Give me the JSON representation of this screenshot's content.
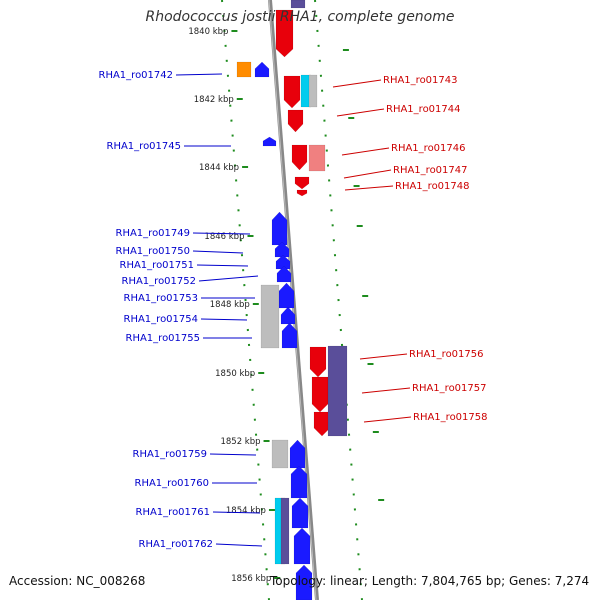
{
  "title": "Rhodococcus jostii RHA1, complete genome",
  "footer": {
    "accession": "Accession: NC_008268",
    "summary": "Topology: linear; Length: 7,804,765 bp; Genes: 7,274"
  },
  "colors": {
    "forward": "#e8000b",
    "reverse": "#1a1aff",
    "orange": "#ff8c00",
    "cyan": "#00ccee",
    "gray": "#bdbdbd",
    "purple": "#5a4e9a",
    "salmon": "#f08080",
    "backbone": "#909090",
    "tickGreen": "#1e8c1e",
    "forwardLabel": "#cc0000",
    "reverseLabel": "#0000cc"
  },
  "ticks": [
    "1840 kbp",
    "1842 kbp",
    "1844 kbp",
    "1846 kbp",
    "1848 kbp",
    "1850 kbp",
    "1852 kbp",
    "1854 kbp",
    "1856 kbp"
  ],
  "left_labels": [
    "RHA1_ro01742",
    "RHA1_ro01745",
    "RHA1_ro01749",
    "RHA1_ro01750",
    "RHA1_ro01751",
    "RHA1_ro01752",
    "RHA1_ro01753",
    "RHA1_ro01754",
    "RHA1_ro01755",
    "RHA1_ro01759",
    "RHA1_ro01760",
    "RHA1_ro01761",
    "RHA1_ro01762"
  ],
  "right_labels": [
    "RHA1_ro01743",
    "RHA1_ro01744",
    "RHA1_ro01746",
    "RHA1_ro01747",
    "RHA1_ro01748",
    "RHA1_ro01756",
    "RHA1_ro01757",
    "RHA1_ro01758"
  ]
}
